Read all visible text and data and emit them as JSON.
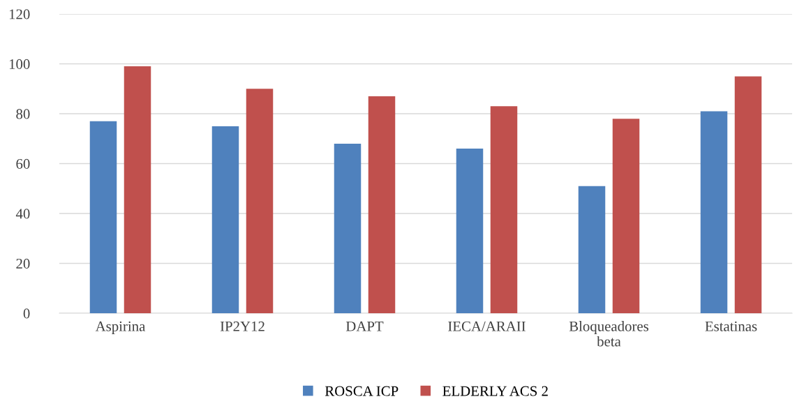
{
  "chart_data": {
    "type": "bar",
    "categories": [
      "Aspirina",
      "IP2Y12",
      "DAPT",
      "IECA/ARAII",
      "Bloqueadores\nbeta",
      "Estatinas"
    ],
    "series": [
      {
        "name": "ROSCA ICP",
        "color": "#4f81bd",
        "values": [
          77,
          75,
          68,
          66,
          51,
          81
        ]
      },
      {
        "name": "ELDERLY ACS 2",
        "color": "#c0504d",
        "values": [
          99,
          90,
          87,
          83,
          78,
          95
        ]
      }
    ],
    "ylim": [
      0,
      120
    ],
    "yticks": [
      0,
      20,
      40,
      60,
      80,
      100,
      120
    ],
    "grid": "y",
    "legend": "bottom"
  }
}
